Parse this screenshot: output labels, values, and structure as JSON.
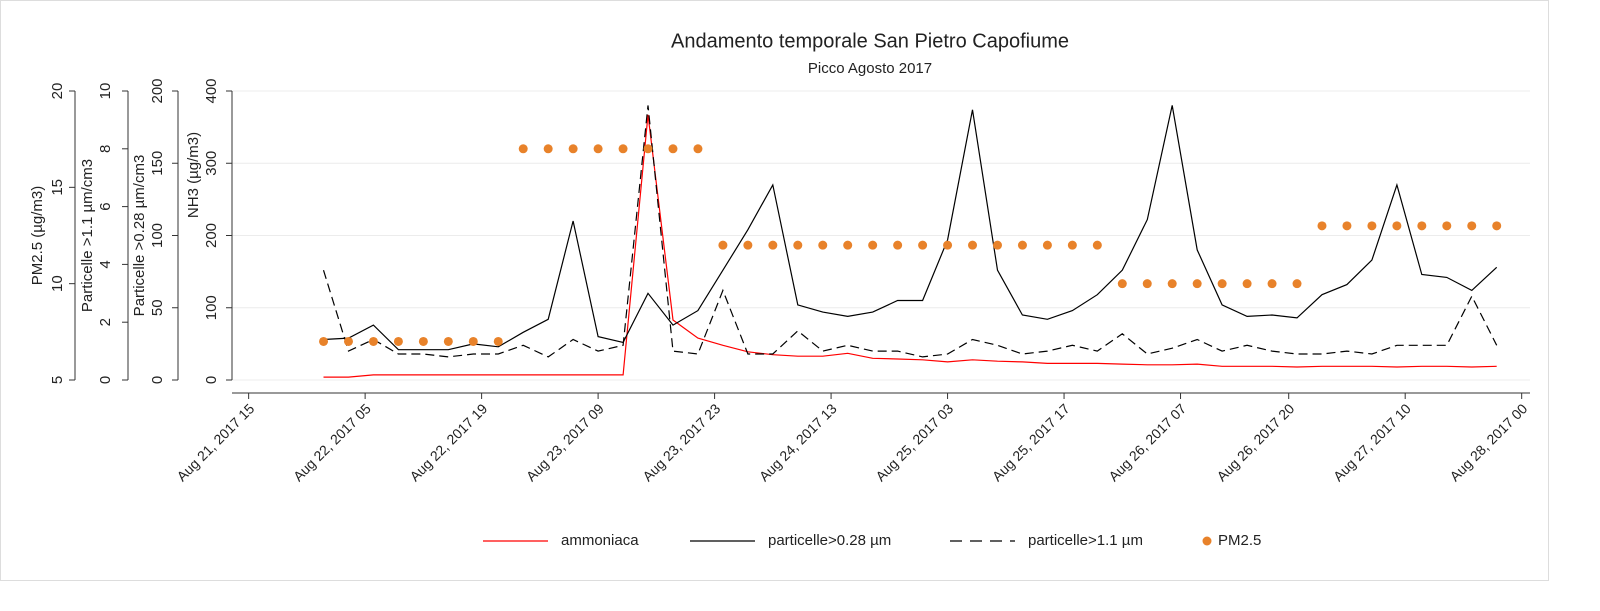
{
  "chart_data": {
    "type": "line",
    "title": "Andamento temporale San Pietro Capofiume",
    "subtitle": "Picco Agosto 2017",
    "ylabel": "NH3 (µg/m3)",
    "ylim": [
      0,
      400
    ],
    "yticks": [
      0,
      100,
      200,
      300,
      400
    ],
    "y2label": "Particelle >0.28 µm/cm3",
    "y2lim": [
      0,
      200
    ],
    "y2ticks": [
      0,
      50,
      100,
      150,
      200
    ],
    "y3label": "Particelle >1.1 µm/cm3",
    "y3lim": [
      0,
      10
    ],
    "y3ticks": [
      0,
      2,
      4,
      6,
      8,
      10
    ],
    "y4label": "PM2.5 (µg/m3)",
    "y4lim": [
      5,
      20
    ],
    "y4ticks": [
      5,
      10,
      15,
      20
    ],
    "grid": true,
    "legend": "bottom",
    "xlim": [
      "2017-08-21T13",
      "2017-08-28T01"
    ],
    "xticks": [
      {
        "value": "2017-08-21T15",
        "label": "Aug 21, 2017 15"
      },
      {
        "value": "2017-08-22T05",
        "label": "Aug 22, 2017 05"
      },
      {
        "value": "2017-08-22T19",
        "label": "Aug 22, 2017 19"
      },
      {
        "value": "2017-08-23T09",
        "label": "Aug 23, 2017 09"
      },
      {
        "value": "2017-08-23T23",
        "label": "Aug 23, 2017 23"
      },
      {
        "value": "2017-08-24T13",
        "label": "Aug 24, 2017 13"
      },
      {
        "value": "2017-08-25T03",
        "label": "Aug 25, 2017 03"
      },
      {
        "value": "2017-08-25T17",
        "label": "Aug 25, 2017 17"
      },
      {
        "value": "2017-08-26T07",
        "label": "Aug 26, 2017 07"
      },
      {
        "value": "2017-08-26T20",
        "label": "Aug 26, 2017 20"
      },
      {
        "value": "2017-08-27T10",
        "label": "Aug 27, 2017 10"
      },
      {
        "value": "2017-08-28T00",
        "label": "Aug 28, 2017 00"
      }
    ],
    "x": [
      "2017-08-22T00",
      "2017-08-22T03",
      "2017-08-22T06",
      "2017-08-22T09",
      "2017-08-22T12",
      "2017-08-22T15",
      "2017-08-22T18",
      "2017-08-22T21",
      "2017-08-23T00",
      "2017-08-23T03",
      "2017-08-23T06",
      "2017-08-23T09",
      "2017-08-23T12",
      "2017-08-23T15",
      "2017-08-23T18",
      "2017-08-23T21",
      "2017-08-24T00",
      "2017-08-24T03",
      "2017-08-24T06",
      "2017-08-24T09",
      "2017-08-24T12",
      "2017-08-24T15",
      "2017-08-24T18",
      "2017-08-24T21",
      "2017-08-25T00",
      "2017-08-25T03",
      "2017-08-25T06",
      "2017-08-25T09",
      "2017-08-25T12",
      "2017-08-25T15",
      "2017-08-25T18",
      "2017-08-25T21",
      "2017-08-26T00",
      "2017-08-26T03",
      "2017-08-26T06",
      "2017-08-26T09",
      "2017-08-26T12",
      "2017-08-26T15",
      "2017-08-26T18",
      "2017-08-26T21",
      "2017-08-27T00",
      "2017-08-27T03",
      "2017-08-27T06",
      "2017-08-27T09",
      "2017-08-27T12",
      "2017-08-27T15",
      "2017-08-27T18",
      "2017-08-27T21"
    ],
    "series": [
      {
        "name": "ammoniaca",
        "color": "#ff0000",
        "style": "solid",
        "axis": "y",
        "values": [
          4,
          4,
          7,
          7,
          7,
          7,
          7,
          7,
          7,
          7,
          7,
          7,
          7,
          367,
          83,
          58,
          48,
          39,
          35,
          33,
          33,
          37,
          30,
          29,
          28,
          25,
          28,
          26,
          25,
          23,
          23,
          23,
          22,
          21,
          21,
          22,
          19,
          19,
          19,
          18,
          19,
          19,
          19,
          18,
          19,
          19,
          18,
          19
        ]
      },
      {
        "name": "particelle>0.28 µm",
        "color": "#000000",
        "style": "solid",
        "axis": "y2",
        "values": [
          28,
          29,
          38,
          21,
          21,
          21,
          25,
          23,
          33,
          42,
          110,
          30,
          26,
          60,
          38,
          48,
          76,
          104,
          135,
          52,
          47,
          44,
          47,
          55,
          55,
          97,
          187,
          76,
          45,
          42,
          48,
          59,
          76,
          111,
          190,
          90,
          52,
          44,
          45,
          43,
          59,
          66,
          83,
          135,
          73,
          71,
          62,
          78
        ]
      },
      {
        "name": "particelle>1.1 µm",
        "color": "#000000",
        "style": "dashed",
        "axis": "y3",
        "values": [
          3.8,
          1.0,
          1.4,
          0.9,
          0.9,
          0.8,
          0.9,
          0.9,
          1.2,
          0.8,
          1.4,
          1.0,
          1.2,
          9.5,
          1.0,
          0.9,
          3.1,
          0.9,
          0.9,
          1.7,
          1.0,
          1.2,
          1.0,
          1.0,
          0.8,
          0.9,
          1.4,
          1.2,
          0.9,
          1.0,
          1.2,
          1.0,
          1.6,
          0.9,
          1.1,
          1.4,
          1.0,
          1.2,
          1.0,
          0.9,
          0.9,
          1.0,
          0.9,
          1.2,
          1.2,
          1.2,
          2.9,
          1.2
        ]
      },
      {
        "name": "PM2.5",
        "color": "#e8822a",
        "style": "dots",
        "axis": "y4",
        "values": [
          7,
          7,
          7,
          7,
          7,
          7,
          7,
          7,
          17,
          17,
          17,
          17,
          17,
          17,
          17,
          17,
          12,
          12,
          12,
          12,
          12,
          12,
          12,
          12,
          12,
          12,
          12,
          12,
          12,
          12,
          12,
          12,
          10,
          10,
          10,
          10,
          10,
          10,
          10,
          10,
          13,
          13,
          13,
          13,
          13,
          13,
          13,
          13
        ]
      }
    ]
  }
}
